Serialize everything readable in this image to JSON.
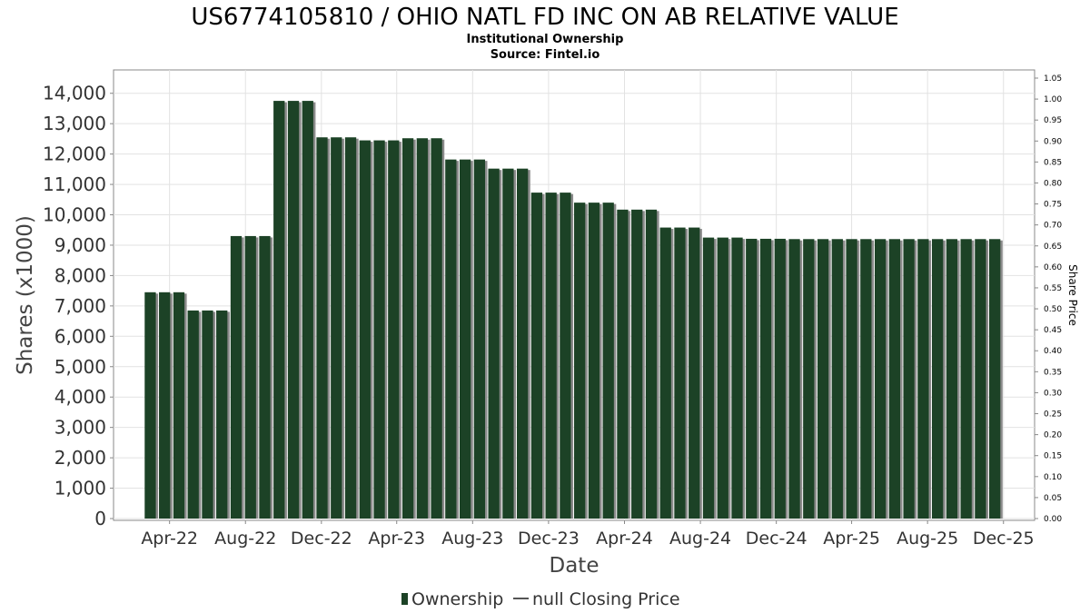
{
  "chart_data": {
    "type": "bar",
    "title": "US6774105810 / OHIO NATL FD INC ON AB RELATIVE VALUE",
    "subtitle_lines": [
      "Institutional Ownership",
      "Source: Fintel.io"
    ],
    "xlabel": "Date",
    "ylabel": "Shares (x1000)",
    "y2label": "Share Price",
    "ylim": [
      0,
      14500
    ],
    "y2lim": [
      0,
      1.05
    ],
    "yticks": [
      "0",
      "1,000",
      "2,000",
      "3,000",
      "4,000",
      "5,000",
      "6,000",
      "7,000",
      "8,000",
      "9,000",
      "10,000",
      "11,000",
      "12,000",
      "13,000",
      "14,000"
    ],
    "y2ticks": [
      "0.00",
      "0.05",
      "0.10",
      "0.15",
      "0.20",
      "0.25",
      "0.30",
      "0.35",
      "0.40",
      "0.45",
      "0.50",
      "0.55",
      "0.60",
      "0.65",
      "0.70",
      "0.75",
      "0.80",
      "0.85",
      "0.90",
      "0.95",
      "1.00",
      "1.05"
    ],
    "xlim": [
      "2022-01-01",
      "2026-01-20"
    ],
    "xticks": [
      {
        "date": "2022-04-01",
        "label": "Apr-22"
      },
      {
        "date": "2022-08-01",
        "label": "Aug-22"
      },
      {
        "date": "2022-12-01",
        "label": "Dec-22"
      },
      {
        "date": "2023-04-01",
        "label": "Apr-23"
      },
      {
        "date": "2023-08-01",
        "label": "Aug-23"
      },
      {
        "date": "2023-12-01",
        "label": "Dec-23"
      },
      {
        "date": "2024-04-01",
        "label": "Apr-24"
      },
      {
        "date": "2024-08-01",
        "label": "Aug-24"
      },
      {
        "date": "2024-12-01",
        "label": "Dec-24"
      },
      {
        "date": "2025-04-01",
        "label": "Apr-25"
      },
      {
        "date": "2025-08-01",
        "label": "Aug-25"
      },
      {
        "date": "2025-12-01",
        "label": "Dec-25"
      }
    ],
    "grid": true,
    "legend_position": "bottom-center",
    "series": [
      {
        "name": "Ownership",
        "color": "#1c4226",
        "x": [
          "2022-03-01",
          "2022-03-24",
          "2022-04-16",
          "2022-05-09",
          "2022-06-01",
          "2022-06-24",
          "2022-07-17",
          "2022-08-09",
          "2022-09-01",
          "2022-09-24",
          "2022-10-17",
          "2022-11-09",
          "2022-12-02",
          "2022-12-25",
          "2023-01-17",
          "2023-02-09",
          "2023-03-04",
          "2023-03-27",
          "2023-04-19",
          "2023-05-12",
          "2023-06-04",
          "2023-06-27",
          "2023-07-20",
          "2023-08-12",
          "2023-09-04",
          "2023-09-27",
          "2023-10-20",
          "2023-11-12",
          "2023-12-05",
          "2023-12-28",
          "2024-01-20",
          "2024-02-12",
          "2024-03-06",
          "2024-03-29",
          "2024-04-21",
          "2024-05-14",
          "2024-06-06",
          "2024-06-29",
          "2024-07-22",
          "2024-08-14",
          "2024-09-06",
          "2024-09-29",
          "2024-10-22",
          "2024-11-14",
          "2024-12-07",
          "2024-12-30",
          "2025-01-22",
          "2025-02-14",
          "2025-03-09",
          "2025-04-01",
          "2025-04-24",
          "2025-05-17",
          "2025-06-09",
          "2025-07-02",
          "2025-07-25",
          "2025-08-17",
          "2025-09-09",
          "2025-10-02",
          "2025-10-25",
          "2025-11-17"
        ],
        "values": [
          7450,
          7450,
          7450,
          6850,
          6850,
          6850,
          9300,
          9300,
          9300,
          13750,
          13750,
          13750,
          12550,
          12550,
          12550,
          12450,
          12450,
          12450,
          12520,
          12520,
          12520,
          11820,
          11820,
          11820,
          11520,
          11520,
          11520,
          10730,
          10730,
          10730,
          10400,
          10400,
          10400,
          10170,
          10170,
          10170,
          9580,
          9580,
          9580,
          9250,
          9250,
          9250,
          9210,
          9210,
          9210,
          9200,
          9200,
          9200,
          9200,
          9200,
          9200,
          9200,
          9200,
          9200,
          9200,
          9200,
          9200,
          9200,
          9200,
          9200
        ]
      },
      {
        "name": "null Closing Price",
        "color": "#666666",
        "values": []
      }
    ]
  }
}
